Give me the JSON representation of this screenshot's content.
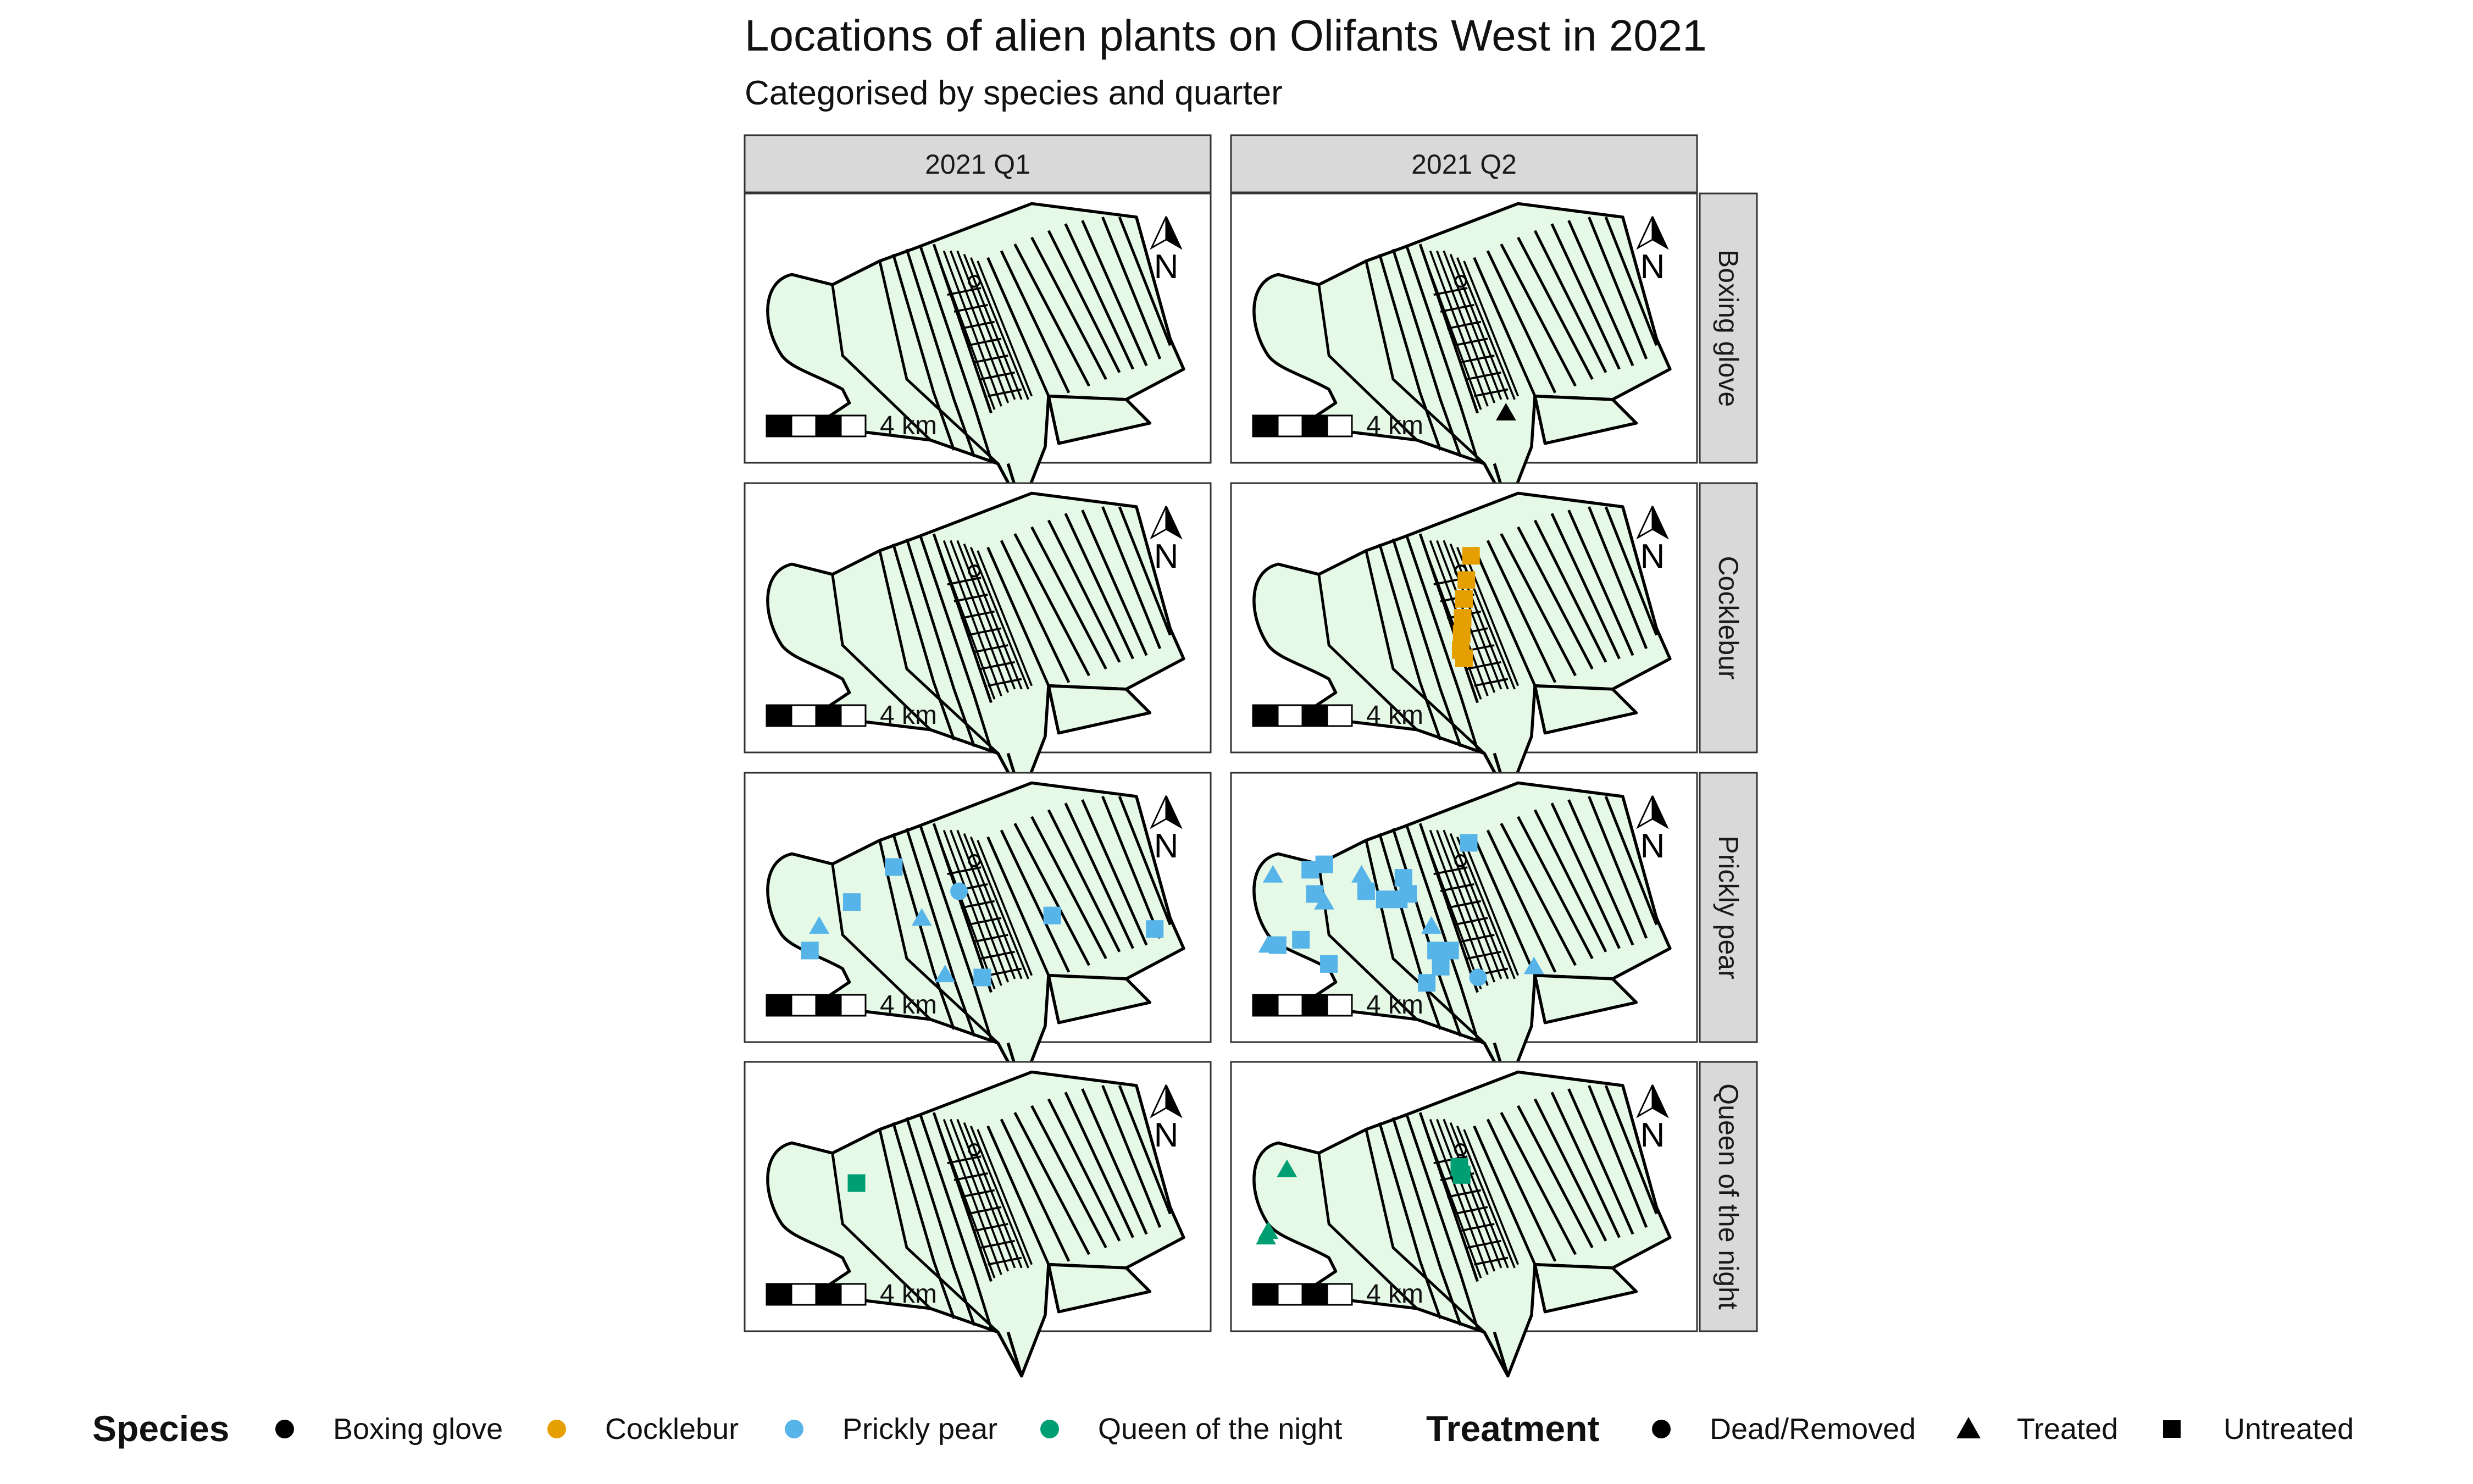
{
  "title": "Locations of alien plants on Olifants West in 2021",
  "subtitle": "Categorised by species and quarter",
  "columns": [
    "2021 Q1",
    "2021 Q2"
  ],
  "rows": [
    "Boxing glove",
    "Cocklebur",
    "Prickly pear",
    "Queen of the night"
  ],
  "scale_label": "4 km",
  "north_label": "N",
  "legend": {
    "species_title": "Species",
    "species": [
      {
        "name": "Boxing glove",
        "color": "#000000"
      },
      {
        "name": "Cocklebur",
        "color": "#E69F00"
      },
      {
        "name": "Prickly pear",
        "color": "#56B4E9"
      },
      {
        "name": "Queen of the night",
        "color": "#009E73"
      }
    ],
    "treatment_title": "Treatment",
    "treatments": [
      {
        "name": "Dead/Removed",
        "shape": "circle"
      },
      {
        "name": "Treated",
        "shape": "triangle"
      },
      {
        "name": "Untreated",
        "shape": "square"
      }
    ]
  },
  "colors": {
    "land_fill": "#E6F8E6",
    "strip_fill": "#D9D9D9",
    "outline": "#000000"
  },
  "chart_data": {
    "type": "scatter",
    "facets": [
      {
        "column": "2021 Q1",
        "row": "Boxing glove",
        "points": []
      },
      {
        "column": "2021 Q2",
        "row": "Boxing glove",
        "points": [
          {
            "x": 0.59,
            "y": 0.815,
            "treatment": "Treated"
          }
        ]
      },
      {
        "column": "2021 Q1",
        "row": "Cocklebur",
        "points": []
      },
      {
        "column": "2021 Q2",
        "row": "Cocklebur",
        "points": [
          {
            "x": 0.515,
            "y": 0.27,
            "treatment": "Untreated"
          },
          {
            "x": 0.505,
            "y": 0.36,
            "treatment": "Untreated"
          },
          {
            "x": 0.5,
            "y": 0.43,
            "treatment": "Untreated"
          },
          {
            "x": 0.497,
            "y": 0.5,
            "treatment": "Untreated"
          },
          {
            "x": 0.495,
            "y": 0.56,
            "treatment": "Untreated"
          },
          {
            "x": 0.493,
            "y": 0.62,
            "treatment": "Untreated"
          },
          {
            "x": 0.5,
            "y": 0.65,
            "treatment": "Untreated"
          }
        ]
      },
      {
        "column": "2021 Q1",
        "row": "Prickly pear",
        "points": [
          {
            "x": 0.32,
            "y": 0.35,
            "treatment": "Untreated"
          },
          {
            "x": 0.23,
            "y": 0.48,
            "treatment": "Untreated"
          },
          {
            "x": 0.16,
            "y": 0.57,
            "treatment": "Treated"
          },
          {
            "x": 0.14,
            "y": 0.66,
            "treatment": "Untreated"
          },
          {
            "x": 0.38,
            "y": 0.54,
            "treatment": "Treated"
          },
          {
            "x": 0.46,
            "y": 0.44,
            "treatment": "Dead/Removed"
          },
          {
            "x": 0.43,
            "y": 0.75,
            "treatment": "Treated"
          },
          {
            "x": 0.51,
            "y": 0.76,
            "treatment": "Untreated"
          },
          {
            "x": 0.66,
            "y": 0.53,
            "treatment": "Untreated"
          },
          {
            "x": 0.88,
            "y": 0.58,
            "treatment": "Untreated"
          }
        ]
      },
      {
        "column": "2021 Q2",
        "row": "Prickly pear",
        "points": [
          {
            "x": 0.09,
            "y": 0.38,
            "treatment": "Treated"
          },
          {
            "x": 0.17,
            "y": 0.36,
            "treatment": "Untreated"
          },
          {
            "x": 0.2,
            "y": 0.34,
            "treatment": "Untreated"
          },
          {
            "x": 0.18,
            "y": 0.45,
            "treatment": "Untreated"
          },
          {
            "x": 0.2,
            "y": 0.48,
            "treatment": "Treated"
          },
          {
            "x": 0.28,
            "y": 0.38,
            "treatment": "Treated"
          },
          {
            "x": 0.29,
            "y": 0.44,
            "treatment": "Untreated"
          },
          {
            "x": 0.33,
            "y": 0.47,
            "treatment": "Untreated"
          },
          {
            "x": 0.36,
            "y": 0.47,
            "treatment": "Untreated"
          },
          {
            "x": 0.37,
            "y": 0.39,
            "treatment": "Untreated"
          },
          {
            "x": 0.38,
            "y": 0.45,
            "treatment": "Untreated"
          },
          {
            "x": 0.51,
            "y": 0.26,
            "treatment": "Untreated"
          },
          {
            "x": 0.43,
            "y": 0.57,
            "treatment": "Treated"
          },
          {
            "x": 0.44,
            "y": 0.66,
            "treatment": "Untreated"
          },
          {
            "x": 0.45,
            "y": 0.72,
            "treatment": "Untreated"
          },
          {
            "x": 0.47,
            "y": 0.66,
            "treatment": "Untreated"
          },
          {
            "x": 0.42,
            "y": 0.78,
            "treatment": "Untreated"
          },
          {
            "x": 0.53,
            "y": 0.76,
            "treatment": "Dead/Removed"
          },
          {
            "x": 0.65,
            "y": 0.72,
            "treatment": "Treated"
          },
          {
            "x": 0.08,
            "y": 0.64,
            "treatment": "Treated"
          },
          {
            "x": 0.1,
            "y": 0.64,
            "treatment": "Untreated"
          },
          {
            "x": 0.15,
            "y": 0.62,
            "treatment": "Untreated"
          },
          {
            "x": 0.21,
            "y": 0.71,
            "treatment": "Untreated"
          }
        ]
      },
      {
        "column": "2021 Q1",
        "row": "Queen of the night",
        "points": [
          {
            "x": 0.24,
            "y": 0.45,
            "treatment": "Untreated"
          }
        ]
      },
      {
        "column": "2021 Q2",
        "row": "Queen of the night",
        "points": [
          {
            "x": 0.12,
            "y": 0.4,
            "treatment": "Treated"
          },
          {
            "x": 0.49,
            "y": 0.39,
            "treatment": "Untreated"
          },
          {
            "x": 0.495,
            "y": 0.42,
            "treatment": "Untreated"
          },
          {
            "x": 0.08,
            "y": 0.63,
            "treatment": "Treated"
          },
          {
            "x": 0.075,
            "y": 0.65,
            "treatment": "Treated"
          }
        ]
      }
    ]
  }
}
